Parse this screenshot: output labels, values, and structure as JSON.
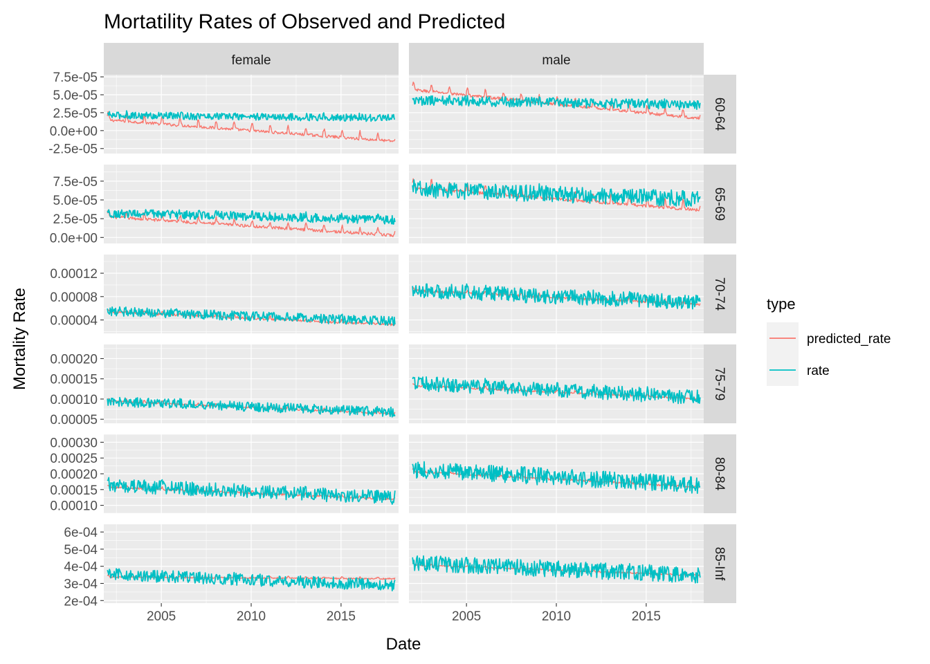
{
  "chart_data": {
    "type": "line",
    "title": "Mortatility Rates of Observed and Predicted",
    "xlabel": "Date",
    "ylabel": "Mortality Rate",
    "grid": true,
    "legend": {
      "title": "type",
      "position": "right",
      "entries": [
        {
          "name": "predicted_rate",
          "color": "#F8766D"
        },
        {
          "name": "rate",
          "color": "#00BFC4"
        }
      ]
    },
    "x_range": [
      2001.8,
      2018.2
    ],
    "x_ticks": [
      2005,
      2010,
      2015
    ],
    "x_tick_labels": [
      "2005",
      "2010",
      "2015"
    ],
    "column_facets": [
      "female",
      "male"
    ],
    "row_facets": [
      {
        "label": "60-64",
        "ylim": [
          -3.2e-05,
          7.8e-05
        ],
        "ticks": [
          -2.5e-05,
          0,
          2.5e-05,
          5e-05,
          7.5e-05
        ],
        "tick_labels": [
          "-2.5e-05",
          "0.0e+00",
          "2.5e-05",
          "5.0e-05",
          "7.5e-05"
        ]
      },
      {
        "label": "65-69",
        "ylim": [
          -8e-06,
          9.7e-05
        ],
        "ticks": [
          0,
          2.5e-05,
          5e-05,
          7.5e-05
        ],
        "tick_labels": [
          "0.0e+00",
          "2.5e-05",
          "5.0e-05",
          "7.5e-05"
        ]
      },
      {
        "label": "70-74",
        "ylim": [
          1.7e-05,
          0.000152
        ],
        "ticks": [
          4e-05,
          8e-05,
          0.00012
        ],
        "tick_labels": [
          "0.00004",
          "0.00008",
          "0.00012"
        ]
      },
      {
        "label": "75-79",
        "ylim": [
          4e-05,
          0.000235
        ],
        "ticks": [
          5e-05,
          0.0001,
          0.00015,
          0.0002
        ],
        "tick_labels": [
          "0.00005",
          "0.00010",
          "0.00015",
          "0.00020"
        ]
      },
      {
        "label": "80-84",
        "ylim": [
          7.5e-05,
          0.000325
        ],
        "ticks": [
          0.0001,
          0.00015,
          0.0002,
          0.00025,
          0.0003
        ],
        "tick_labels": [
          "0.00010",
          "0.00015",
          "0.00020",
          "0.00025",
          "0.00030"
        ]
      },
      {
        "label": "85-Inf",
        "ylim": [
          0.000185,
          0.000645
        ],
        "ticks": [
          0.0002,
          0.0003,
          0.0004,
          0.0005,
          0.0006
        ],
        "tick_labels": [
          "2e-04",
          "3e-04",
          "4e-04",
          "5e-04",
          "6e-04"
        ]
      }
    ],
    "series": [
      {
        "name": "predicted_rate",
        "color": "#F8766D",
        "x_start": 2002,
        "x_end": 2018,
        "panels": {
          "60-64|female": {
            "start": 1.8e-05,
            "end": -1.2e-05,
            "seasonal": 1e-05,
            "noise": 2e-06
          },
          "60-64|male": {
            "start": 6e-05,
            "end": 2e-05,
            "seasonal": 1e-05,
            "noise": 2e-06
          },
          "65-69|female": {
            "start": 3e-05,
            "end": 5e-06,
            "seasonal": 8e-06,
            "noise": 2e-06
          },
          "65-69|male": {
            "start": 7e-05,
            "end": 4e-05,
            "seasonal": 1.2e-05,
            "noise": 2e-06
          },
          "70-74|female": {
            "start": 5.5e-05,
            "end": 3.3e-05,
            "seasonal": 4e-06,
            "noise": 2e-06
          },
          "70-74|male": {
            "start": 9.2e-05,
            "end": 6.8e-05,
            "seasonal": 5e-06,
            "noise": 2e-06
          },
          "75-79|female": {
            "start": 9.7e-05,
            "end": 6.5e-05,
            "seasonal": 6e-06,
            "noise": 2e-06
          },
          "75-79|male": {
            "start": 0.000135,
            "end": 0.000102,
            "seasonal": 6e-06,
            "noise": 2e-06
          },
          "80-84|female": {
            "start": 0.00016,
            "end": 0.000122,
            "seasonal": 8e-06,
            "noise": 3e-06
          },
          "80-84|male": {
            "start": 0.00021,
            "end": 0.00016,
            "seasonal": 8e-06,
            "noise": 3e-06
          },
          "85-Inf|female": {
            "start": 0.00034,
            "end": 0.00033,
            "seasonal": 1e-05,
            "noise": 4e-06
          },
          "85-Inf|male": {
            "start": 0.00041,
            "end": 0.00035,
            "seasonal": 1e-05,
            "noise": 4e-06
          }
        }
      },
      {
        "name": "rate",
        "color": "#00BFC4",
        "x_start": 2002,
        "x_end": 2018,
        "panels": {
          "60-64|female": {
            "start": 2.2e-05,
            "end": 1.8e-05,
            "seasonal": 2e-06,
            "noise": 5e-06
          },
          "60-64|male": {
            "start": 4.3e-05,
            "end": 3.6e-05,
            "seasonal": 2e-06,
            "noise": 7e-06
          },
          "65-69|female": {
            "start": 3.3e-05,
            "end": 2.4e-05,
            "seasonal": 2e-06,
            "noise": 6e-06
          },
          "65-69|male": {
            "start": 6.5e-05,
            "end": 5.2e-05,
            "seasonal": 3e-06,
            "noise": 1.1e-05
          },
          "70-74|female": {
            "start": 5.6e-05,
            "end": 3.8e-05,
            "seasonal": 2e-06,
            "noise": 8e-06
          },
          "70-74|male": {
            "start": 9.2e-05,
            "end": 7e-05,
            "seasonal": 3e-06,
            "noise": 1.3e-05
          },
          "75-79|female": {
            "start": 9.5e-05,
            "end": 6.8e-05,
            "seasonal": 2e-06,
            "noise": 1.2e-05
          },
          "75-79|male": {
            "start": 0.00014,
            "end": 0.000105,
            "seasonal": 3e-06,
            "noise": 1.8e-05
          },
          "80-84|female": {
            "start": 0.000165,
            "end": 0.000125,
            "seasonal": 3e-06,
            "noise": 2.2e-05
          },
          "80-84|male": {
            "start": 0.000215,
            "end": 0.000165,
            "seasonal": 3e-06,
            "noise": 2.7e-05
          },
          "85-Inf|female": {
            "start": 0.000355,
            "end": 0.00029,
            "seasonal": 5e-06,
            "noise": 3.5e-05
          },
          "85-Inf|male": {
            "start": 0.00042,
            "end": 0.00035,
            "seasonal": 5e-06,
            "noise": 4.8e-05
          }
        }
      }
    ]
  }
}
